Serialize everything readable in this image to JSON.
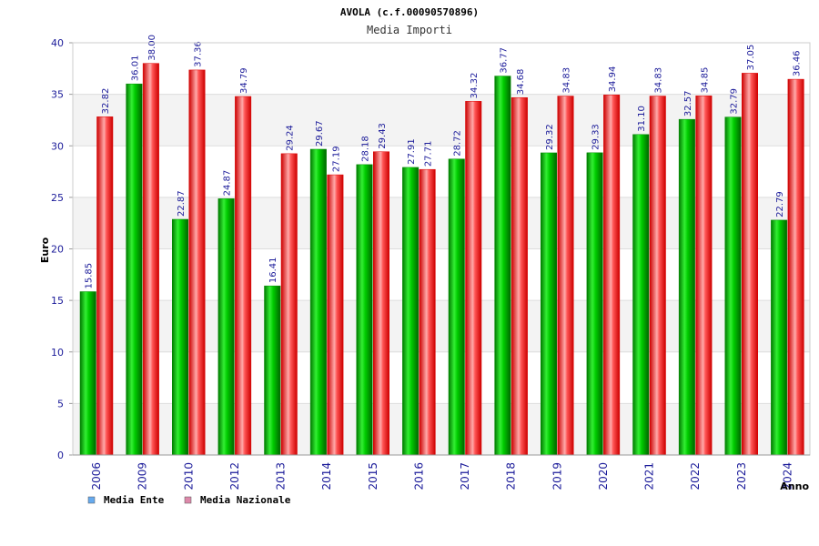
{
  "chart_data": {
    "type": "bar",
    "title": "AVOLA (c.f.00090570896)",
    "subtitle": "Media Importi",
    "xlabel": "Anno",
    "ylabel": "Euro",
    "ylim": [
      0,
      40
    ],
    "yticks": [
      0,
      5,
      10,
      15,
      20,
      25,
      30,
      35,
      40
    ],
    "grid": true,
    "legend_position": "bottom-left",
    "categories": [
      "2006",
      "2009",
      "2010",
      "2012",
      "2013",
      "2014",
      "2015",
      "2016",
      "2017",
      "2018",
      "2019",
      "2020",
      "2021",
      "2022",
      "2023",
      "2024"
    ],
    "series": [
      {
        "name": "Media Ente",
        "color": "#00aa00",
        "legend_color": "#66aaee",
        "values": [
          15.85,
          36.01,
          22.87,
          24.87,
          16.41,
          29.67,
          28.18,
          27.91,
          28.72,
          36.77,
          29.32,
          29.33,
          31.1,
          32.57,
          32.79,
          22.79
        ],
        "labels": [
          "15.85",
          "36.01",
          "22.87",
          "24.87",
          "16.41",
          "29.67",
          "28.18",
          "27.91",
          "28.72",
          "36.77",
          "29.32",
          "29.33",
          "31.10",
          "32.57",
          "32.79",
          "22.79"
        ]
      },
      {
        "name": "Media Nazionale",
        "color": "#ee0000",
        "legend_color": "#dd88aa",
        "values": [
          32.82,
          38.0,
          37.36,
          34.79,
          29.24,
          27.19,
          29.43,
          27.71,
          34.32,
          34.68,
          34.83,
          34.94,
          34.83,
          34.85,
          37.05,
          36.46
        ],
        "labels": [
          "32.82",
          "38.00",
          "37.36",
          "34.79",
          "29.24",
          "27.19",
          "29.43",
          "27.71",
          "34.32",
          "34.68",
          "34.83",
          "34.94",
          "34.83",
          "34.85",
          "37.05",
          "36.46"
        ]
      }
    ]
  }
}
